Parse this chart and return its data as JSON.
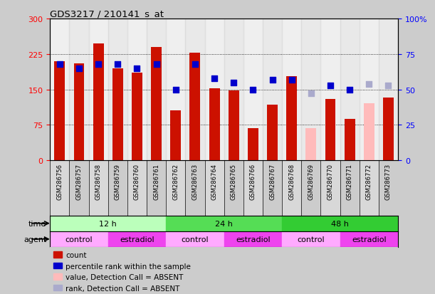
{
  "title": "GDS3217 / 210141_s_at",
  "samples": [
    "GSM286756",
    "GSM286757",
    "GSM286758",
    "GSM286759",
    "GSM286760",
    "GSM286761",
    "GSM286762",
    "GSM286763",
    "GSM286764",
    "GSM286765",
    "GSM286766",
    "GSM286767",
    "GSM286768",
    "GSM286769",
    "GSM286770",
    "GSM286771",
    "GSM286772",
    "GSM286773"
  ],
  "counts": [
    210,
    205,
    247,
    195,
    185,
    240,
    105,
    227,
    152,
    148,
    68,
    118,
    178,
    null,
    130,
    88,
    null,
    132
  ],
  "counts_absent": [
    null,
    null,
    null,
    null,
    null,
    null,
    null,
    null,
    null,
    null,
    null,
    null,
    null,
    68,
    null,
    null,
    120,
    null
  ],
  "ranks": [
    68,
    65,
    68,
    68,
    65,
    68,
    50,
    68,
    58,
    55,
    50,
    57,
    57,
    null,
    53,
    50,
    null,
    null
  ],
  "ranks_absent": [
    null,
    null,
    null,
    null,
    null,
    null,
    null,
    null,
    null,
    null,
    null,
    null,
    null,
    47,
    null,
    null,
    54,
    53
  ],
  "time_groups": [
    {
      "label": "12 h",
      "start": 0,
      "end": 6,
      "color": "#bbffbb"
    },
    {
      "label": "24 h",
      "start": 6,
      "end": 12,
      "color": "#55dd55"
    },
    {
      "label": "48 h",
      "start": 12,
      "end": 18,
      "color": "#33cc33"
    }
  ],
  "agent_groups": [
    {
      "label": "control",
      "start": 0,
      "end": 3,
      "color": "#ffaaff"
    },
    {
      "label": "estradiol",
      "start": 3,
      "end": 6,
      "color": "#ee44ee"
    },
    {
      "label": "control",
      "start": 6,
      "end": 9,
      "color": "#ffaaff"
    },
    {
      "label": "estradiol",
      "start": 9,
      "end": 12,
      "color": "#ee44ee"
    },
    {
      "label": "control",
      "start": 12,
      "end": 15,
      "color": "#ffaaff"
    },
    {
      "label": "estradiol",
      "start": 15,
      "end": 18,
      "color": "#ee44ee"
    }
  ],
  "ylim_left": [
    0,
    300
  ],
  "ylim_right": [
    0,
    100
  ],
  "yticks_left": [
    0,
    75,
    150,
    225,
    300
  ],
  "yticks_right": [
    0,
    25,
    50,
    75,
    100
  ],
  "bar_color": "#cc1100",
  "absent_bar_color": "#ffbbbb",
  "rank_color": "#0000cc",
  "absent_rank_color": "#aaaacc",
  "bg_color": "#cccccc",
  "plot_bg_color": "#ffffff",
  "tick_area_color": "#cccccc",
  "legend_items": [
    {
      "label": "count",
      "color": "#cc1100"
    },
    {
      "label": "percentile rank within the sample",
      "color": "#0000cc"
    },
    {
      "label": "value, Detection Call = ABSENT",
      "color": "#ffbbbb"
    },
    {
      "label": "rank, Detection Call = ABSENT",
      "color": "#aaaacc"
    }
  ]
}
